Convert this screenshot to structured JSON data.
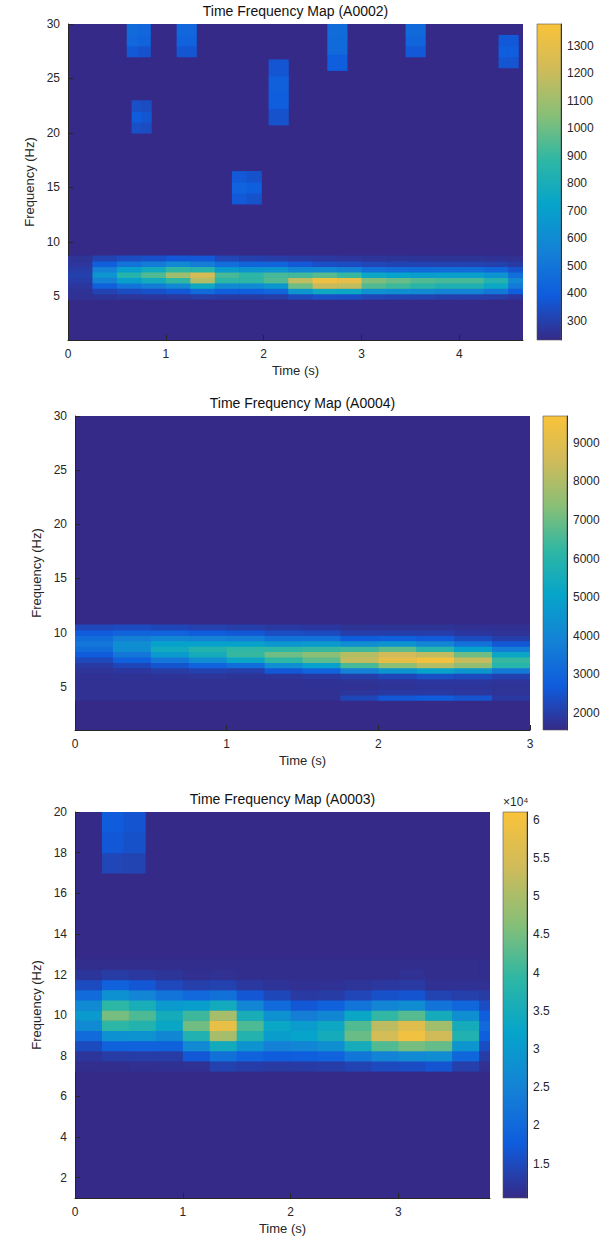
{
  "chart_data": [
    {
      "type": "heatmap",
      "title": "Time Frequency Map (A0002)",
      "x_label": "Time (s)",
      "y_label": "Frequency (Hz)",
      "xlim": [
        0,
        4.65
      ],
      "xticks": [
        0,
        1,
        2,
        3,
        4
      ],
      "ylim": [
        1,
        30
      ],
      "yticks": [
        5,
        10,
        15,
        20,
        25,
        30
      ],
      "grid": false,
      "colorbar": {
        "range": [
          230,
          1380
        ],
        "ticks": [
          300,
          400,
          500,
          600,
          700,
          800,
          900,
          1000,
          1100,
          1200,
          1300
        ]
      },
      "cells": [
        {
          "time": [
            0.125,
            0.375,
            0.625,
            0.875,
            1.125,
            1.375,
            1.625,
            1.875,
            2.125,
            2.375,
            2.625,
            2.875,
            3.125,
            3.375,
            3.625,
            3.875,
            4.125,
            4.375,
            4.625
          ],
          "frequency": [
            5,
            5.5,
            6,
            6.5,
            7,
            7.5,
            8,
            8.5
          ],
          "power": [
            [
              252,
              258,
              270,
              288,
              300,
              288,
              270,
              258
            ],
            [
              262,
              310,
              410,
              550,
              650,
              550,
              410,
              310
            ],
            [
              268,
              340,
              490,
              700,
              850,
              700,
              490,
              340
            ],
            [
              271,
              355,
              530,
              775,
              950,
              775,
              530,
              355
            ],
            [
              275,
              378,
              590,
              888,
              1100,
              888,
              590,
              378
            ],
            [
              290,
              450,
              760,
              1150,
              1240,
              860,
              540,
              380
            ],
            [
              285,
              400,
              600,
              880,
              930,
              680,
              470,
              320
            ],
            [
              285,
              400,
              600,
              880,
              880,
              640,
              430,
              300
            ],
            [
              290,
              430,
              660,
              950,
              930,
              650,
              430,
              290
            ],
            [
              330,
              650,
              1000,
              1180,
              920,
              580,
              380,
              280
            ],
            [
              350,
              760,
              1200,
              1340,
              960,
              580,
              350,
              275
            ],
            [
              345,
              740,
              1180,
              1300,
              900,
              550,
              340,
              270
            ],
            [
              320,
              630,
              950,
              1030,
              750,
              480,
              320,
              265
            ],
            [
              315,
              610,
              910,
              990,
              720,
              460,
              315,
              262
            ],
            [
              310,
              590,
              870,
              950,
              690,
              450,
              310,
              260
            ],
            [
              300,
              560,
              830,
              930,
              700,
              460,
              310,
              258
            ],
            [
              300,
              560,
              830,
              930,
              700,
              460,
              310,
              258
            ],
            [
              290,
              510,
              750,
              840,
              640,
              430,
              300,
              255
            ],
            [
              270,
              400,
              520,
              580,
              470,
              360,
              285,
              252
            ]
          ]
        },
        {
          "time": [
            0.66,
            0.78
          ],
          "frequency": [
            27.5,
            28.5,
            29.5
          ],
          "power": [
            [
              380,
              440,
              460
            ],
            [
              360,
              420,
              440
            ]
          ]
        },
        {
          "time": [
            0.7,
            0.8
          ],
          "frequency": [
            20.5,
            21.5,
            22.5
          ],
          "power": [
            [
              350,
              390,
              350
            ],
            [
              340,
              370,
              340
            ]
          ]
        },
        {
          "time": [
            1.16,
            1.26
          ],
          "frequency": [
            27.5,
            28.5,
            29.5
          ],
          "power": [
            [
              370,
              420,
              440
            ],
            [
              370,
              420,
              440
            ]
          ]
        },
        {
          "time": [
            1.75,
            1.9
          ],
          "frequency": [
            14,
            15,
            16
          ],
          "power": [
            [
              380,
              420,
              380
            ],
            [
              360,
              400,
              360
            ]
          ]
        },
        {
          "time": [
            2.1,
            2.2
          ],
          "frequency": [
            21.5,
            23,
            24.5,
            26
          ],
          "power": [
            [
              360,
              400,
              410,
              370
            ],
            [
              360,
              400,
              410,
              370
            ]
          ]
        },
        {
          "time": [
            2.7,
            2.8
          ],
          "frequency": [
            26.5,
            28,
            29.5
          ],
          "power": [
            [
              400,
              450,
              460
            ],
            [
              400,
              450,
              460
            ]
          ]
        },
        {
          "time": [
            3.5,
            3.6
          ],
          "frequency": [
            27.5,
            28.5,
            29.5
          ],
          "power": [
            [
              380,
              430,
              450
            ],
            [
              380,
              430,
              450
            ]
          ]
        },
        {
          "time": [
            4.45,
            4.55
          ],
          "frequency": [
            26.5,
            27.5,
            28.5
          ],
          "power": [
            [
              370,
              400,
              380
            ],
            [
              370,
              400,
              380
            ]
          ]
        }
      ]
    },
    {
      "type": "heatmap",
      "title": "Time Frequency Map (A0004)",
      "x_label": "Time (s)",
      "y_label": "Frequency (Hz)",
      "xlim": [
        0,
        3
      ],
      "xticks": [
        0,
        1,
        2,
        3
      ],
      "ylim": [
        1,
        30
      ],
      "yticks": [
        5,
        10,
        15,
        20,
        25,
        30
      ],
      "grid": false,
      "colorbar": {
        "range": [
          1550,
          9700
        ],
        "ticks": [
          2000,
          3000,
          4000,
          5000,
          6000,
          7000,
          8000,
          9000
        ]
      },
      "cells": [
        {
          "time": [
            0.125,
            0.375,
            0.625,
            0.875,
            1.125,
            1.375,
            1.625,
            1.875,
            2.125,
            2.375,
            2.625,
            2.875
          ],
          "frequency": [
            4,
            4.5,
            5,
            5.5,
            6,
            6.5,
            7,
            7.5,
            8,
            8.5,
            9,
            9.5,
            10,
            10.5
          ],
          "power": [
            [
              1700,
              1700,
              1700,
              1700,
              1700,
              1770,
              1920,
              2240,
              2690,
              3230,
              3500,
              3230,
              2690,
              2240
            ],
            [
              1700,
              1700,
              1700,
              1700,
              1730,
              1850,
              2200,
              2800,
              3500,
              4200,
              4300,
              3750,
              2950,
              2300
            ],
            [
              1700,
              1700,
              1700,
              1700,
              1760,
              1950,
              2500,
              3500,
              4700,
              5400,
              5000,
              4000,
              2900,
              2200
            ],
            [
              1700,
              1700,
              1700,
              1700,
              1790,
              2100,
              2900,
              4200,
              5500,
              5900,
              5000,
              3800,
              2700,
              2100
            ],
            [
              1700,
              1700,
              1700,
              1700,
              1750,
              2000,
              3200,
              5200,
              6300,
              6200,
              5000,
              3700,
              2600,
              2000
            ],
            [
              1700,
              1700,
              1700,
              1700,
              1800,
              2600,
              4300,
              6200,
              7000,
              6200,
              4600,
              3300,
              2340,
              1900
            ],
            [
              1700,
              1700,
              1700,
              1720,
              1900,
              2900,
              4900,
              6800,
              7400,
              6300,
              4700,
              3300,
              2300,
              1850
            ],
            [
              2200,
              1800,
              1700,
              1750,
              2000,
              3800,
              6500,
              8300,
              8100,
              6400,
              4300,
              2700,
              2000,
              1750
            ],
            [
              2600,
              1900,
              1750,
              1800,
              2200,
              4500,
              7400,
              9200,
              8600,
              6800,
              4500,
              2800,
              2000,
              1750
            ],
            [
              2700,
              1900,
              1800,
              1850,
              2400,
              5000,
              8100,
              9500,
              8300,
              6000,
              4000,
              2640,
              2000,
              1750
            ],
            [
              2500,
              1850,
              1800,
              1850,
              2300,
              4600,
              7500,
              8400,
              7000,
              5000,
              3300,
              2300,
              1850,
              1700
            ],
            [
              1900,
              1750,
              1750,
              1800,
              2100,
              3600,
              6000,
              6300,
              5200,
              3700,
              2600,
              2000,
              1750,
              1700
            ]
          ]
        }
      ]
    },
    {
      "type": "heatmap",
      "title": "Time Frequency Map (A0003)",
      "x_label": "Time (s)",
      "y_label": "Frequency (Hz)",
      "xlim": [
        0,
        3.85
      ],
      "xticks": [
        0,
        1,
        2,
        3
      ],
      "ylim": [
        1,
        20
      ],
      "yticks": [
        2,
        4,
        6,
        8,
        10,
        12,
        14,
        16,
        18,
        20
      ],
      "grid": false,
      "colorbar": {
        "range": [
          10500,
          61000
        ],
        "exponent_label": "×10⁴",
        "ticks": [
          {
            "value": 15000,
            "label": "1.5"
          },
          {
            "value": 20000,
            "label": "2"
          },
          {
            "value": 25000,
            "label": "2.5"
          },
          {
            "value": 30000,
            "label": "3"
          },
          {
            "value": 35000,
            "label": "3.5"
          },
          {
            "value": 40000,
            "label": "4"
          },
          {
            "value": 45000,
            "label": "4.5"
          },
          {
            "value": 50000,
            "label": "5"
          },
          {
            "value": 55000,
            "label": "5.5"
          },
          {
            "value": 60000,
            "label": "6"
          }
        ]
      },
      "cells": [
        {
          "time": [
            0.125,
            0.375,
            0.625,
            0.875,
            1.125,
            1.375,
            1.625,
            1.875,
            2.125,
            2.375,
            2.625,
            2.875,
            3.125,
            3.375,
            3.625,
            3.875
          ],
          "frequency": [
            7.5,
            8,
            8.5,
            9,
            9.5,
            10,
            10.5,
            11,
            11.5,
            12,
            12.5
          ],
          "power": [
            [
              11000,
              12100,
              15200,
              20500,
              26600,
              30000,
              26600,
              20500,
              15200,
              12100,
              11000
            ],
            [
              11000,
              13000,
              18500,
              28000,
              38900,
              45000,
              38900,
              28000,
              18500,
              13000,
              11000
            ],
            [
              11200,
              13200,
              19000,
              28500,
              37500,
              41700,
              35500,
              25500,
              16900,
              12500,
              11000
            ],
            [
              11400,
              13000,
              18500,
              26000,
              33000,
              35000,
              30000,
              22000,
              14800,
              12000,
              11000
            ],
            [
              11500,
              17000,
              26500,
              37000,
              44500,
              40500,
              31000,
              20000,
              13500,
              11200,
              11000
            ],
            [
              13800,
              21300,
              34500,
              49500,
              58000,
              49500,
              34500,
              21300,
              13800,
              11500,
              11000
            ],
            [
              13200,
              19000,
              28500,
              37500,
              41700,
              35500,
              25500,
              16900,
              12500,
              11000,
              11000
            ],
            [
              12700,
              17500,
              24500,
              30800,
              33000,
              28000,
              20500,
              14700,
              11800,
              11000,
              11000
            ],
            [
              12900,
              18000,
              25500,
              32000,
              30500,
              24000,
              17000,
              12800,
              11500,
              11000,
              11000
            ],
            [
              13200,
              19000,
              27500,
              35000,
              33500,
              26000,
              18500,
              13000,
              11600,
              11000,
              11000
            ],
            [
              14000,
              22500,
              35000,
              44000,
              42000,
              33000,
              22000,
              14500,
              12000,
              11000,
              11000
            ],
            [
              15000,
              25000,
              42000,
              54500,
              52000,
              39500,
              25500,
              16000,
              12500,
              11000,
              11000
            ],
            [
              15500,
              26500,
              45000,
              59500,
              56500,
              42500,
              27000,
              16500,
              12700,
              11500,
              11000
            ],
            [
              16500,
              27000,
              43500,
              54000,
              49000,
              35000,
              22000,
              14000,
              11500,
              11000,
              11000
            ],
            [
              13500,
              19500,
              29000,
              37000,
              35000,
              27500,
              19500,
              13500,
              11600,
              11000,
              11000
            ],
            [
              11500,
              13000,
              15500,
              18000,
              20000,
              18000,
              15500,
              13000,
              11500,
              11000,
              11000
            ]
          ]
        },
        {
          "time": [
            0.35,
            0.55
          ],
          "frequency": [
            17.5,
            18.5,
            19.5
          ],
          "power": [
            [
              14500,
              17000,
              17500
            ],
            [
              14000,
              16000,
              16500
            ]
          ]
        }
      ]
    }
  ]
}
